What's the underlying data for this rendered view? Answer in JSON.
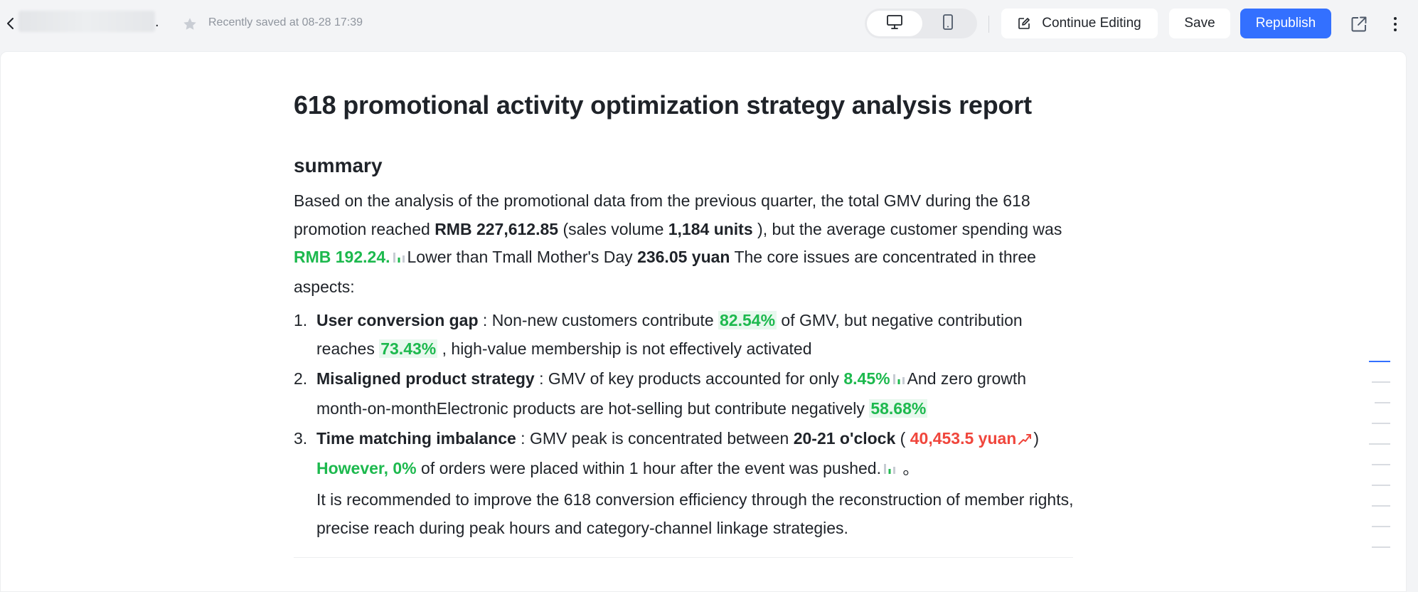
{
  "header": {
    "title_suffix": ".",
    "saved_status": "Recently saved at 08-28 17:39",
    "continue_label": "Continue Editing",
    "save_label": "Save",
    "republish_label": "Republish"
  },
  "document": {
    "title": "618 promotional activity optimization strategy analysis report",
    "section_heading": "summary",
    "summary": {
      "t1": "Based on the analysis of the promotional data from the previous quarter, the total GMV during the 618 promotion reached ",
      "gmv": "RMB 227,612.85",
      "t2": " (sales volume ",
      "volume": "1,184 units",
      "t3": " ), but the average customer spending was ",
      "avg_spend": "RMB 192.24.",
      "t4": "Lower than Tmall Mother's Day ",
      "mothers_day": "236.05 yuan",
      "t5": " The core issues are concentrated in three aspects:"
    },
    "issues": [
      {
        "number": "1.",
        "label": "User conversion gap",
        "t1": " : Non-new customers contribute ",
        "v1": "82.54%",
        "t2": "  of GMV, but negative contribution reaches ",
        "v2": "73.43%",
        "t3": " , high-value membership is not effectively activated"
      },
      {
        "number": "2.",
        "label": "Misaligned product strategy",
        "t1": " : GMV of key products accounted for only ",
        "v1": "8.45%",
        "t2": "And zero growth month-on-monthElectronic products are hot-selling but contribute negatively ",
        "v2": "58.68%"
      },
      {
        "number": "3.",
        "label": "Time matching imbalance",
        "t1": " : GMV peak is concentrated between ",
        "v1": "20-21 o'clock",
        "t2": " ( ",
        "v2": "40,453.5 yuan",
        "t3": ")",
        "v3": "However, 0%",
        "t4": " of orders were placed within 1 hour after the event was pushed.",
        "t5": " 。"
      }
    ],
    "conclusion": "It is recommended to improve the 618 conversion efficiency through the reconstruction of member rights, precise reach during peak hours and category-channel linkage strategies."
  },
  "colors": {
    "accent": "#3370ff",
    "positive_green": "#1db94e",
    "negative_red": "#f0463c"
  },
  "icons": [
    "back-icon",
    "star-icon",
    "desktop-icon",
    "mobile-icon",
    "edit-icon",
    "share-icon",
    "more-icon",
    "bar-chart-icon",
    "trend-up-icon"
  ]
}
